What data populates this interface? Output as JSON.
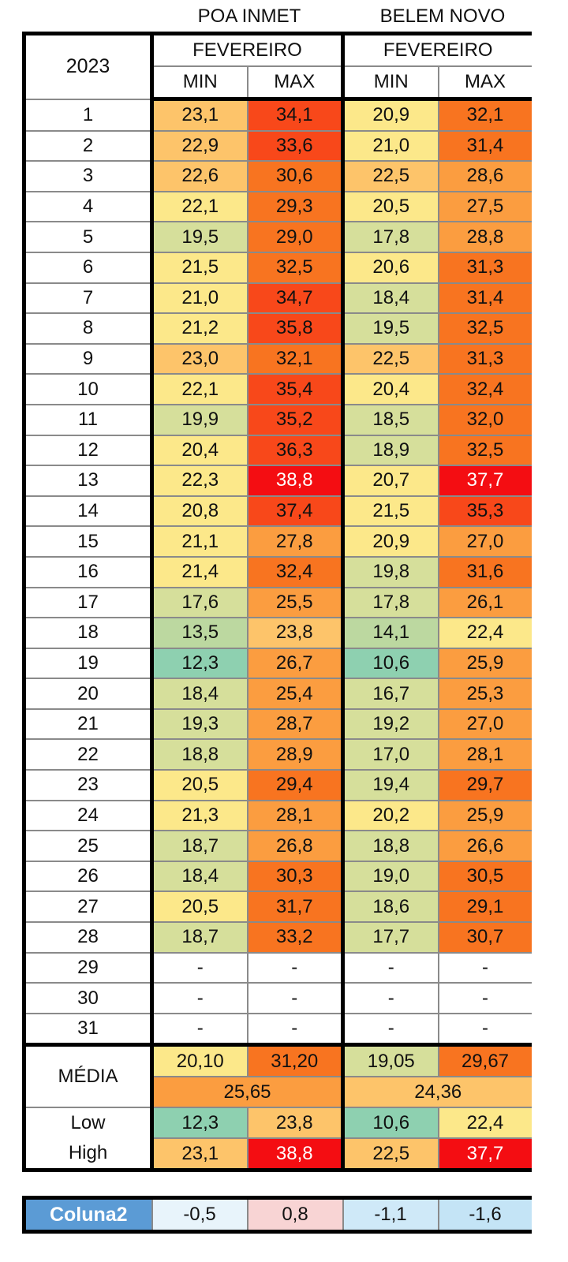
{
  "stations": [
    {
      "name": "POA INMET",
      "month": "FEVEREIRO"
    },
    {
      "name": "BELEM NOVO",
      "month": "FEVEREIRO"
    }
  ],
  "year_label": "2023",
  "col_min": "MIN",
  "col_max": "MAX",
  "rows": [
    {
      "day": "1",
      "poa_min": "23,1",
      "poa_max": "34,1",
      "bel_min": "20,9",
      "bel_max": "32,1"
    },
    {
      "day": "2",
      "poa_min": "22,9",
      "poa_max": "33,6",
      "bel_min": "21,0",
      "bel_max": "31,4"
    },
    {
      "day": "3",
      "poa_min": "22,6",
      "poa_max": "30,6",
      "bel_min": "22,5",
      "bel_max": "28,6"
    },
    {
      "day": "4",
      "poa_min": "22,1",
      "poa_max": "29,3",
      "bel_min": "20,5",
      "bel_max": "27,5"
    },
    {
      "day": "5",
      "poa_min": "19,5",
      "poa_max": "29,0",
      "bel_min": "17,8",
      "bel_max": "28,8"
    },
    {
      "day": "6",
      "poa_min": "21,5",
      "poa_max": "32,5",
      "bel_min": "20,6",
      "bel_max": "31,3"
    },
    {
      "day": "7",
      "poa_min": "21,0",
      "poa_max": "34,7",
      "bel_min": "18,4",
      "bel_max": "31,4"
    },
    {
      "day": "8",
      "poa_min": "21,2",
      "poa_max": "35,8",
      "bel_min": "19,5",
      "bel_max": "32,5"
    },
    {
      "day": "9",
      "poa_min": "23,0",
      "poa_max": "32,1",
      "bel_min": "22,5",
      "bel_max": "31,3"
    },
    {
      "day": "10",
      "poa_min": "22,1",
      "poa_max": "35,4",
      "bel_min": "20,4",
      "bel_max": "32,4"
    },
    {
      "day": "11",
      "poa_min": "19,9",
      "poa_max": "35,2",
      "bel_min": "18,5",
      "bel_max": "32,0"
    },
    {
      "day": "12",
      "poa_min": "20,4",
      "poa_max": "36,3",
      "bel_min": "18,9",
      "bel_max": "32,5"
    },
    {
      "day": "13",
      "poa_min": "22,3",
      "poa_max": "38,8",
      "bel_min": "20,7",
      "bel_max": "37,7"
    },
    {
      "day": "14",
      "poa_min": "20,8",
      "poa_max": "37,4",
      "bel_min": "21,5",
      "bel_max": "35,3"
    },
    {
      "day": "15",
      "poa_min": "21,1",
      "poa_max": "27,8",
      "bel_min": "20,9",
      "bel_max": "27,0"
    },
    {
      "day": "16",
      "poa_min": "21,4",
      "poa_max": "32,4",
      "bel_min": "19,8",
      "bel_max": "31,6"
    },
    {
      "day": "17",
      "poa_min": "17,6",
      "poa_max": "25,5",
      "bel_min": "17,8",
      "bel_max": "26,1"
    },
    {
      "day": "18",
      "poa_min": "13,5",
      "poa_max": "23,8",
      "bel_min": "14,1",
      "bel_max": "22,4"
    },
    {
      "day": "19",
      "poa_min": "12,3",
      "poa_max": "26,7",
      "bel_min": "10,6",
      "bel_max": "25,9"
    },
    {
      "day": "20",
      "poa_min": "18,4",
      "poa_max": "25,4",
      "bel_min": "16,7",
      "bel_max": "25,3"
    },
    {
      "day": "21",
      "poa_min": "19,3",
      "poa_max": "28,7",
      "bel_min": "19,2",
      "bel_max": "27,0"
    },
    {
      "day": "22",
      "poa_min": "18,8",
      "poa_max": "28,9",
      "bel_min": "17,0",
      "bel_max": "28,1"
    },
    {
      "day": "23",
      "poa_min": "20,5",
      "poa_max": "29,4",
      "bel_min": "19,4",
      "bel_max": "29,7"
    },
    {
      "day": "24",
      "poa_min": "21,3",
      "poa_max": "28,1",
      "bel_min": "20,2",
      "bel_max": "25,9"
    },
    {
      "day": "25",
      "poa_min": "18,7",
      "poa_max": "26,8",
      "bel_min": "18,8",
      "bel_max": "26,6"
    },
    {
      "day": "26",
      "poa_min": "18,4",
      "poa_max": "30,3",
      "bel_min": "19,0",
      "bel_max": "30,5"
    },
    {
      "day": "27",
      "poa_min": "20,5",
      "poa_max": "31,7",
      "bel_min": "18,6",
      "bel_max": "29,1"
    },
    {
      "day": "28",
      "poa_min": "18,7",
      "poa_max": "33,2",
      "bel_min": "17,7",
      "bel_max": "30,7"
    },
    {
      "day": "29",
      "poa_min": "-",
      "poa_max": "-",
      "bel_min": "-",
      "bel_max": "-"
    },
    {
      "day": "30",
      "poa_min": "-",
      "poa_max": "-",
      "bel_min": "-",
      "bel_max": "-"
    },
    {
      "day": "31",
      "poa_min": "-",
      "poa_max": "-",
      "bel_min": "-",
      "bel_max": "-"
    }
  ],
  "media": {
    "label": "MÉDIA",
    "poa_min": "20,10",
    "poa_max": "31,20",
    "bel_min": "19,05",
    "bel_max": "29,67",
    "poa_avg": "25,65",
    "bel_avg": "24,36"
  },
  "low": {
    "label": "Low",
    "poa_min": "12,3",
    "poa_max": "23,8",
    "bel_min": "10,6",
    "bel_max": "22,4"
  },
  "high": {
    "label": "High",
    "poa_min": "23,1",
    "poa_max": "38,8",
    "bel_min": "22,5",
    "bel_max": "37,7"
  },
  "coluna2": {
    "label": "Coluna2",
    "values": [
      "-0,5",
      "0,8",
      "-1,1",
      "-1,6"
    ],
    "colors": [
      "#e8f4fb",
      "#f8d4d4",
      "#cfe9f8",
      "#c4e4f6"
    ]
  },
  "palette": {
    "teal": "#8ed0b0",
    "green": "#bcd8a0",
    "lightgreen": "#d6df9b",
    "yellow": "#fce88a",
    "lightorange": "#fdc46a",
    "orange": "#fb9d40",
    "darkorange": "#f87420",
    "redorange": "#f8481a",
    "red": "#f40d12",
    "accent_blue": "#5b9bd5"
  }
}
